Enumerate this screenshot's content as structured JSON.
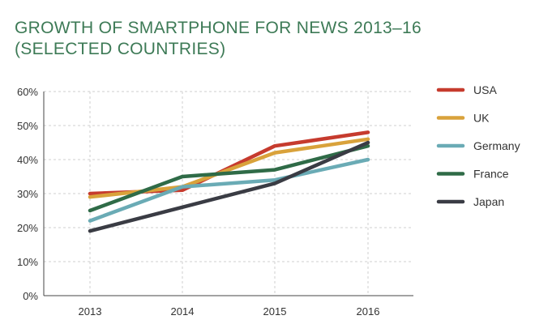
{
  "title_line1": "GROWTH OF SMARTPHONE FOR NEWS 2013–16",
  "title_line2": "(SELECTED COUNTRIES)",
  "chart_data": {
    "type": "line",
    "title": "GROWTH OF SMARTPHONE FOR NEWS 2013–16 (SELECTED COUNTRIES)",
    "x": [
      "2013",
      "2014",
      "2015",
      "2016"
    ],
    "y_ticks": [
      "0%",
      "10%",
      "20%",
      "30%",
      "40%",
      "50%",
      "60%"
    ],
    "ylim": [
      0,
      60
    ],
    "y_unit": "%",
    "grid": "horizontal dashed + vertical dashed",
    "legend_position": "right",
    "series": [
      {
        "name": "USA",
        "color": "#c63b2e",
        "values": [
          30,
          31,
          44,
          48
        ]
      },
      {
        "name": "UK",
        "color": "#d9a23b",
        "values": [
          29,
          32,
          42,
          46
        ]
      },
      {
        "name": "Germany",
        "color": "#6aabb5",
        "values": [
          22,
          32,
          34,
          40
        ]
      },
      {
        "name": "France",
        "color": "#2f6b47",
        "values": [
          25,
          35,
          37,
          44
        ]
      },
      {
        "name": "Japan",
        "color": "#3a3c44",
        "values": [
          19,
          26,
          33,
          45
        ]
      }
    ]
  }
}
